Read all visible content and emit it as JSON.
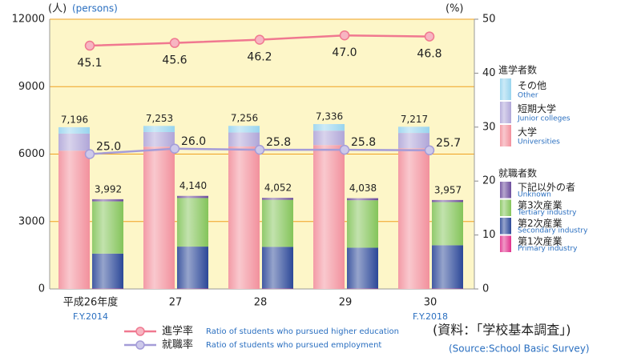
{
  "chart_data": {
    "type": "bar",
    "y_unit": "(人)",
    "y_unit_en": "(persons)",
    "y2_unit": "(%)",
    "categories": [
      "平成26年度",
      "27",
      "28",
      "29",
      "30"
    ],
    "category_sublabels": [
      "F.Y.2014",
      null,
      null,
      null,
      "F.Y.2018"
    ],
    "ylim": [
      0,
      12000
    ],
    "yticks": [
      0,
      3000,
      6000,
      9000,
      12000
    ],
    "y2lim": [
      0,
      50
    ],
    "y2ticks": [
      0,
      10,
      20,
      30,
      40,
      50
    ],
    "grid": true,
    "stacks": [
      {
        "name": "進学者数",
        "series": [
          {
            "name": "大学",
            "name_en": "Universities",
            "color": "#f2909c",
            "values": [
              6150,
              6330,
              6340,
              6400,
              6260
            ]
          },
          {
            "name": "短期大学",
            "name_en": "Junior colleges",
            "color": "#b0a6d8",
            "values": [
              760,
              650,
              620,
              640,
              680
            ]
          },
          {
            "name": "その他",
            "name_en": "Other",
            "color": "#98d4ee",
            "values": [
              286,
              273,
              296,
              296,
              277
            ]
          }
        ],
        "totals": {
          "values": [
            7196,
            7253,
            7256,
            7336,
            7217
          ],
          "value_labels": [
            "7,196",
            "7,253",
            "7,256",
            "7,336",
            "7,217"
          ]
        }
      },
      {
        "name": "就職者数",
        "series": [
          {
            "name": "第1次産業",
            "name_en": "Primary industry",
            "color": "#e0308c",
            "values": [
              15,
              15,
              15,
              15,
              15
            ]
          },
          {
            "name": "第2次産業",
            "name_en": "Secondary industry",
            "color": "#2c4898",
            "values": [
              1560,
              1870,
              1860,
              1820,
              1930
            ]
          },
          {
            "name": "第3次産業",
            "name_en": "Tertiary industry",
            "color": "#84c45a",
            "values": [
              2320,
              2160,
              2090,
              2110,
              1920
            ]
          },
          {
            "name": "下記以外の者",
            "name_en": "Unknown",
            "color": "#6c4c9c",
            "values": [
              97,
              95,
              87,
              93,
              92
            ]
          }
        ],
        "totals": {
          "values": [
            3992,
            4140,
            4052,
            4038,
            3957
          ],
          "value_labels": [
            "3,992",
            "4,140",
            "4,052",
            "4,038",
            "3,957"
          ]
        }
      }
    ],
    "lines": [
      {
        "name": "進学率",
        "name_en": "Ratio of students who pursued higher education",
        "color": "#f07890",
        "axis": "y2",
        "values": [
          45.1,
          45.6,
          46.2,
          47.0,
          46.8
        ],
        "value_labels": [
          "45.1",
          "45.6",
          "46.2",
          "47.0",
          "46.8"
        ]
      },
      {
        "name": "就職率",
        "name_en": "Ratio of students who pursued employment",
        "color": "#a49cd8",
        "axis": "y2",
        "values": [
          25.0,
          26.0,
          25.8,
          25.8,
          25.7
        ],
        "value_labels": [
          "25.0",
          "26.0",
          "25.8",
          "25.8",
          "25.7"
        ]
      }
    ],
    "source": "(資料：「学校基本調査」)",
    "source_en": "(Source:School Basic Survey)"
  }
}
